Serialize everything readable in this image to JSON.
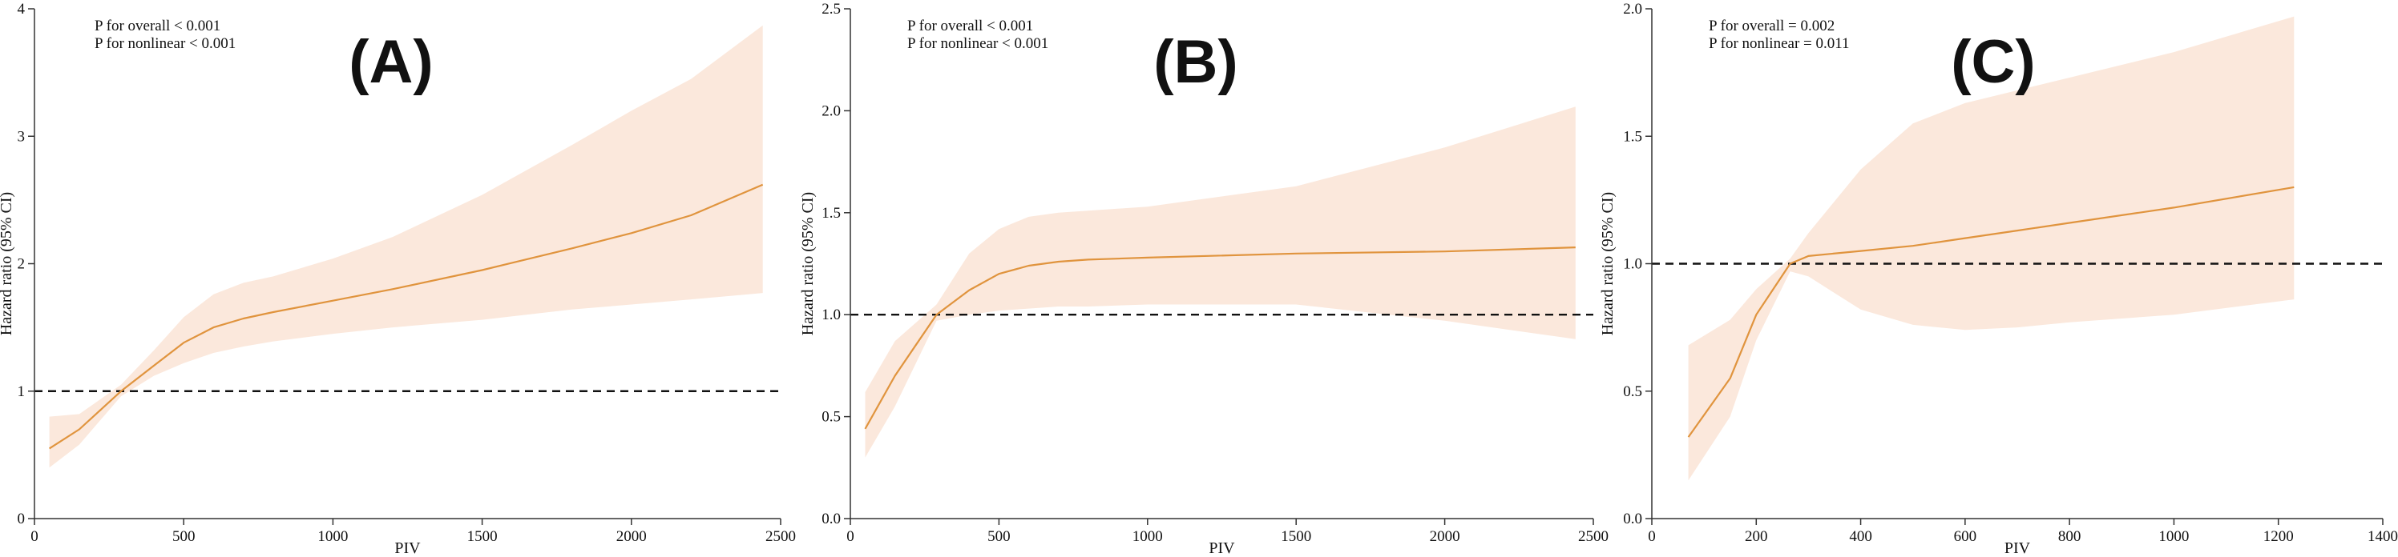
{
  "figure": {
    "colors": {
      "band": "#fbe8dc",
      "line": "#e0943e",
      "ref": "#111111",
      "axis": "#333333"
    }
  },
  "chart_data": [
    {
      "type": "line",
      "panel_label": "(A)",
      "annotations": [
        "P for overall < 0.001",
        "P for nonlinear < 0.001"
      ],
      "xlabel": "PIV",
      "ylabel": "Hazard ratio (95% CI)",
      "xlim": [
        0,
        2500
      ],
      "ylim": [
        0,
        4
      ],
      "xticks": [
        0,
        500,
        1000,
        1500,
        2000,
        2500
      ],
      "xtick_labels": [
        "0",
        "500",
        "1000",
        "1500",
        "2000",
        "2500"
      ],
      "yticks": [
        0,
        1,
        2,
        3,
        4
      ],
      "ytick_labels": [
        "0",
        "1",
        "2",
        "3",
        "4"
      ],
      "reference_line": 1,
      "x": [
        50,
        150,
        290,
        400,
        500,
        600,
        700,
        800,
        1000,
        1200,
        1500,
        1800,
        2000,
        2200,
        2440
      ],
      "estimate": [
        0.55,
        0.7,
        1.0,
        1.2,
        1.38,
        1.5,
        1.57,
        1.62,
        1.71,
        1.8,
        1.95,
        2.12,
        2.24,
        2.38,
        2.62
      ],
      "lower": [
        0.4,
        0.58,
        0.96,
        1.12,
        1.22,
        1.3,
        1.35,
        1.39,
        1.45,
        1.5,
        1.56,
        1.64,
        1.68,
        1.72,
        1.77
      ],
      "upper": [
        0.8,
        0.82,
        1.05,
        1.32,
        1.58,
        1.76,
        1.85,
        1.9,
        2.04,
        2.21,
        2.54,
        2.93,
        3.2,
        3.45,
        3.87
      ]
    },
    {
      "type": "line",
      "panel_label": "(B)",
      "annotations": [
        "P for overall < 0.001",
        "P for nonlinear < 0.001"
      ],
      "xlabel": "PIV",
      "ylabel": "Hazard ratio (95% CI)",
      "xlim": [
        0,
        2500
      ],
      "ylim": [
        0,
        2.5
      ],
      "xticks": [
        0,
        500,
        1000,
        1500,
        2000,
        2500
      ],
      "xtick_labels": [
        "0",
        "500",
        "1000",
        "1500",
        "2000",
        "2500"
      ],
      "yticks": [
        0,
        0.5,
        1,
        1.5,
        2,
        2.5
      ],
      "ytick_labels": [
        "0.0",
        "0.5",
        "1.0",
        "1.5",
        "2.0",
        "2.5"
      ],
      "reference_line": 1,
      "x": [
        50,
        150,
        290,
        400,
        500,
        600,
        700,
        800,
        1000,
        1500,
        2000,
        2440
      ],
      "estimate": [
        0.44,
        0.7,
        1.0,
        1.12,
        1.2,
        1.24,
        1.26,
        1.27,
        1.28,
        1.3,
        1.31,
        1.33
      ],
      "lower": [
        0.3,
        0.55,
        0.97,
        1.0,
        1.02,
        1.03,
        1.04,
        1.04,
        1.05,
        1.05,
        0.97,
        0.88
      ],
      "upper": [
        0.62,
        0.87,
        1.05,
        1.3,
        1.42,
        1.48,
        1.5,
        1.51,
        1.53,
        1.63,
        1.82,
        2.02
      ]
    },
    {
      "type": "line",
      "panel_label": "(C)",
      "annotations": [
        "P for overall = 0.002",
        "P for nonlinear = 0.011"
      ],
      "xlabel": "PIV",
      "ylabel": "Hazard ratio (95% CI)",
      "xlim": [
        0,
        1400
      ],
      "ylim": [
        0,
        2
      ],
      "xticks": [
        0,
        200,
        400,
        600,
        800,
        1000,
        1200,
        1400
      ],
      "xtick_labels": [
        "0",
        "200",
        "400",
        "600",
        "800",
        "1000",
        "1200",
        "1400"
      ],
      "yticks": [
        0,
        0.5,
        1,
        1.5,
        2
      ],
      "ytick_labels": [
        "0.0",
        "0.5",
        "1.0",
        "1.5",
        "2.0"
      ],
      "reference_line": 1,
      "x": [
        70,
        150,
        200,
        265,
        300,
        400,
        500,
        600,
        700,
        800,
        1000,
        1230
      ],
      "estimate": [
        0.32,
        0.55,
        0.8,
        1.0,
        1.03,
        1.05,
        1.07,
        1.1,
        1.13,
        1.16,
        1.22,
        1.3
      ],
      "lower": [
        0.15,
        0.4,
        0.7,
        0.97,
        0.95,
        0.82,
        0.76,
        0.74,
        0.75,
        0.77,
        0.8,
        0.86
      ],
      "upper": [
        0.68,
        0.78,
        0.9,
        1.02,
        1.12,
        1.37,
        1.55,
        1.63,
        1.68,
        1.73,
        1.83,
        1.97
      ]
    }
  ]
}
